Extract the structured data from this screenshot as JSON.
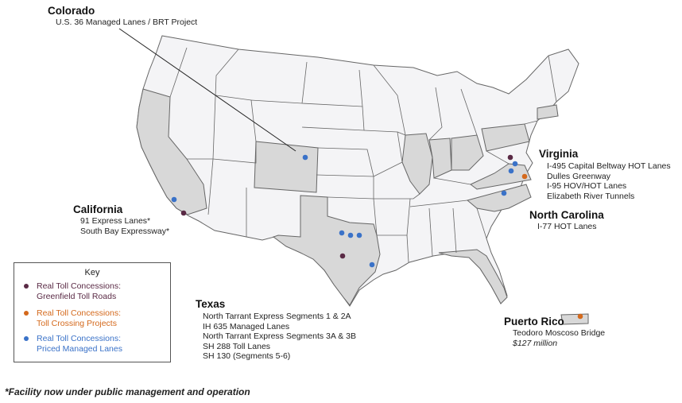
{
  "colors": {
    "greenfield": "#5a2a45",
    "toll_crossing": "#d4691c",
    "managed_lanes": "#3a72c8",
    "highlighted_state": "#d8d8d8",
    "default_state": "#f4f4f6",
    "state_border": "#666666"
  },
  "colorado": {
    "title": "Colorado",
    "projects": [
      "U.S. 36 Managed Lanes / BRT Project"
    ]
  },
  "california": {
    "title": "California",
    "projects": [
      "91 Express Lanes*",
      "South Bay Expressway*"
    ]
  },
  "virginia": {
    "title": "Virginia",
    "projects": [
      "I-495 Capital Beltway HOT Lanes",
      "Dulles Greenway",
      "I-95 HOV/HOT Lanes",
      "Elizabeth River Tunnels"
    ]
  },
  "north_carolina": {
    "title": "North Carolina",
    "projects": [
      "I-77 HOT Lanes"
    ]
  },
  "texas": {
    "title": "Texas",
    "projects": [
      "North Tarrant Express Segments 1 & 2A",
      "IH 635 Managed Lanes",
      "North Tarrant Express Segments 3A & 3B",
      "SH 288 Toll Lanes",
      "SH 130 (Segments 5-6)"
    ]
  },
  "puerto_rico": {
    "title": "Puerto Rico",
    "projects": [
      "Teodoro Moscoso Bridge"
    ],
    "cost": "$127 million"
  },
  "key": {
    "title": "Key",
    "items": [
      {
        "line1": "Real Toll Concessions:",
        "line2": "Greenfield Toll Roads",
        "color": "#5a2a45"
      },
      {
        "line1": "Real Toll Concessions:",
        "line2": "Toll Crossing Projects",
        "color": "#d4691c"
      },
      {
        "line1": "Real Toll Concessions:",
        "line2": "Priced Managed Lanes",
        "color": "#3a72c8"
      }
    ]
  },
  "footnote": "*Facility now under public management and operation"
}
